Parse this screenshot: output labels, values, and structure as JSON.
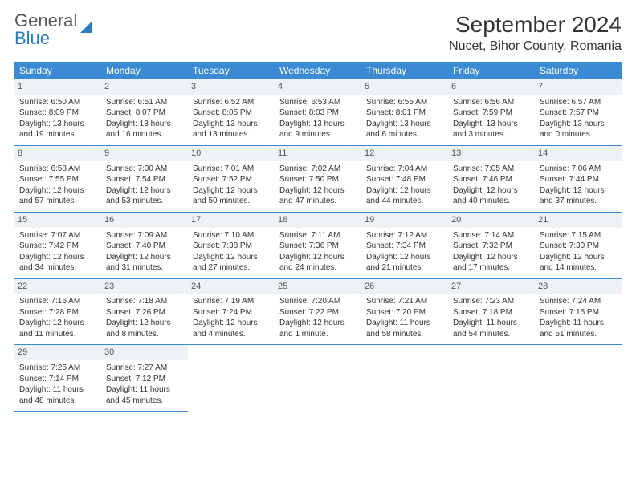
{
  "logo": {
    "top": "General",
    "bottom": "Blue"
  },
  "title": "September 2024",
  "location": "Nucet, Bihor County, Romania",
  "colors": {
    "header_bg": "#3b8bd4",
    "header_text": "#ffffff",
    "daynum_bg": "#eef2f5",
    "border": "#3b8bd4",
    "logo_accent": "#2b7bbf"
  },
  "day_headers": [
    "Sunday",
    "Monday",
    "Tuesday",
    "Wednesday",
    "Thursday",
    "Friday",
    "Saturday"
  ],
  "weeks": [
    [
      {
        "n": "1",
        "sr": "Sunrise: 6:50 AM",
        "ss": "Sunset: 8:09 PM",
        "d1": "Daylight: 13 hours",
        "d2": "and 19 minutes."
      },
      {
        "n": "2",
        "sr": "Sunrise: 6:51 AM",
        "ss": "Sunset: 8:07 PM",
        "d1": "Daylight: 13 hours",
        "d2": "and 16 minutes."
      },
      {
        "n": "3",
        "sr": "Sunrise: 6:52 AM",
        "ss": "Sunset: 8:05 PM",
        "d1": "Daylight: 13 hours",
        "d2": "and 13 minutes."
      },
      {
        "n": "4",
        "sr": "Sunrise: 6:53 AM",
        "ss": "Sunset: 8:03 PM",
        "d1": "Daylight: 13 hours",
        "d2": "and 9 minutes."
      },
      {
        "n": "5",
        "sr": "Sunrise: 6:55 AM",
        "ss": "Sunset: 8:01 PM",
        "d1": "Daylight: 13 hours",
        "d2": "and 6 minutes."
      },
      {
        "n": "6",
        "sr": "Sunrise: 6:56 AM",
        "ss": "Sunset: 7:59 PM",
        "d1": "Daylight: 13 hours",
        "d2": "and 3 minutes."
      },
      {
        "n": "7",
        "sr": "Sunrise: 6:57 AM",
        "ss": "Sunset: 7:57 PM",
        "d1": "Daylight: 13 hours",
        "d2": "and 0 minutes."
      }
    ],
    [
      {
        "n": "8",
        "sr": "Sunrise: 6:58 AM",
        "ss": "Sunset: 7:55 PM",
        "d1": "Daylight: 12 hours",
        "d2": "and 57 minutes."
      },
      {
        "n": "9",
        "sr": "Sunrise: 7:00 AM",
        "ss": "Sunset: 7:54 PM",
        "d1": "Daylight: 12 hours",
        "d2": "and 53 minutes."
      },
      {
        "n": "10",
        "sr": "Sunrise: 7:01 AM",
        "ss": "Sunset: 7:52 PM",
        "d1": "Daylight: 12 hours",
        "d2": "and 50 minutes."
      },
      {
        "n": "11",
        "sr": "Sunrise: 7:02 AM",
        "ss": "Sunset: 7:50 PM",
        "d1": "Daylight: 12 hours",
        "d2": "and 47 minutes."
      },
      {
        "n": "12",
        "sr": "Sunrise: 7:04 AM",
        "ss": "Sunset: 7:48 PM",
        "d1": "Daylight: 12 hours",
        "d2": "and 44 minutes."
      },
      {
        "n": "13",
        "sr": "Sunrise: 7:05 AM",
        "ss": "Sunset: 7:46 PM",
        "d1": "Daylight: 12 hours",
        "d2": "and 40 minutes."
      },
      {
        "n": "14",
        "sr": "Sunrise: 7:06 AM",
        "ss": "Sunset: 7:44 PM",
        "d1": "Daylight: 12 hours",
        "d2": "and 37 minutes."
      }
    ],
    [
      {
        "n": "15",
        "sr": "Sunrise: 7:07 AM",
        "ss": "Sunset: 7:42 PM",
        "d1": "Daylight: 12 hours",
        "d2": "and 34 minutes."
      },
      {
        "n": "16",
        "sr": "Sunrise: 7:09 AM",
        "ss": "Sunset: 7:40 PM",
        "d1": "Daylight: 12 hours",
        "d2": "and 31 minutes."
      },
      {
        "n": "17",
        "sr": "Sunrise: 7:10 AM",
        "ss": "Sunset: 7:38 PM",
        "d1": "Daylight: 12 hours",
        "d2": "and 27 minutes."
      },
      {
        "n": "18",
        "sr": "Sunrise: 7:11 AM",
        "ss": "Sunset: 7:36 PM",
        "d1": "Daylight: 12 hours",
        "d2": "and 24 minutes."
      },
      {
        "n": "19",
        "sr": "Sunrise: 7:12 AM",
        "ss": "Sunset: 7:34 PM",
        "d1": "Daylight: 12 hours",
        "d2": "and 21 minutes."
      },
      {
        "n": "20",
        "sr": "Sunrise: 7:14 AM",
        "ss": "Sunset: 7:32 PM",
        "d1": "Daylight: 12 hours",
        "d2": "and 17 minutes."
      },
      {
        "n": "21",
        "sr": "Sunrise: 7:15 AM",
        "ss": "Sunset: 7:30 PM",
        "d1": "Daylight: 12 hours",
        "d2": "and 14 minutes."
      }
    ],
    [
      {
        "n": "22",
        "sr": "Sunrise: 7:16 AM",
        "ss": "Sunset: 7:28 PM",
        "d1": "Daylight: 12 hours",
        "d2": "and 11 minutes."
      },
      {
        "n": "23",
        "sr": "Sunrise: 7:18 AM",
        "ss": "Sunset: 7:26 PM",
        "d1": "Daylight: 12 hours",
        "d2": "and 8 minutes."
      },
      {
        "n": "24",
        "sr": "Sunrise: 7:19 AM",
        "ss": "Sunset: 7:24 PM",
        "d1": "Daylight: 12 hours",
        "d2": "and 4 minutes."
      },
      {
        "n": "25",
        "sr": "Sunrise: 7:20 AM",
        "ss": "Sunset: 7:22 PM",
        "d1": "Daylight: 12 hours",
        "d2": "and 1 minute."
      },
      {
        "n": "26",
        "sr": "Sunrise: 7:21 AM",
        "ss": "Sunset: 7:20 PM",
        "d1": "Daylight: 11 hours",
        "d2": "and 58 minutes."
      },
      {
        "n": "27",
        "sr": "Sunrise: 7:23 AM",
        "ss": "Sunset: 7:18 PM",
        "d1": "Daylight: 11 hours",
        "d2": "and 54 minutes."
      },
      {
        "n": "28",
        "sr": "Sunrise: 7:24 AM",
        "ss": "Sunset: 7:16 PM",
        "d1": "Daylight: 11 hours",
        "d2": "and 51 minutes."
      }
    ],
    [
      {
        "n": "29",
        "sr": "Sunrise: 7:25 AM",
        "ss": "Sunset: 7:14 PM",
        "d1": "Daylight: 11 hours",
        "d2": "and 48 minutes."
      },
      {
        "n": "30",
        "sr": "Sunrise: 7:27 AM",
        "ss": "Sunset: 7:12 PM",
        "d1": "Daylight: 11 hours",
        "d2": "and 45 minutes."
      },
      null,
      null,
      null,
      null,
      null
    ]
  ]
}
